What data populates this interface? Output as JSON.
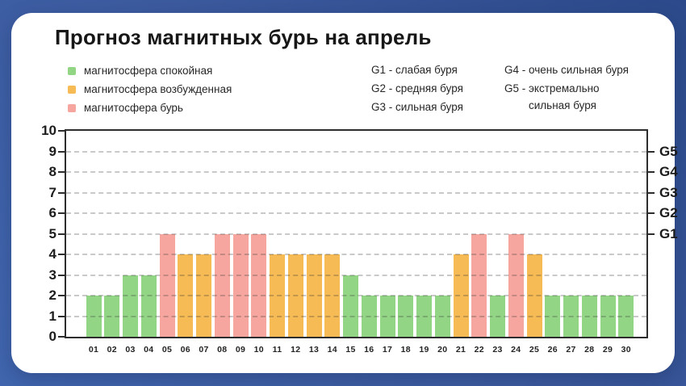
{
  "title": "Прогноз магнитных бурь на апрель",
  "legend": {
    "items": [
      {
        "key": "quiet",
        "label": "магнитосфера спокойная",
        "color": "#92D584"
      },
      {
        "key": "excited",
        "label": "магнитосфера возбужденная",
        "color": "#F6BB54"
      },
      {
        "key": "storm",
        "label": "магнитосфера бурь",
        "color": "#F6A69E"
      }
    ]
  },
  "storm_scale": {
    "col1": [
      "G1 - слабая буря",
      "G2 - средняя буря",
      "G3 - сильная буря"
    ],
    "col2": [
      "G4 - очень сильная буря",
      "G5 - экстремально\nсильная буря"
    ]
  },
  "chart_data": {
    "type": "bar",
    "title": "Прогноз магнитных бурь на апрель",
    "xlabel": "",
    "ylabel": "",
    "categories": [
      "01",
      "02",
      "03",
      "04",
      "05",
      "06",
      "07",
      "08",
      "09",
      "10",
      "11",
      "12",
      "13",
      "14",
      "15",
      "16",
      "17",
      "18",
      "19",
      "20",
      "21",
      "22",
      "23",
      "24",
      "25",
      "26",
      "27",
      "28",
      "29",
      "30"
    ],
    "values": [
      2,
      2,
      3,
      3,
      5,
      4,
      4,
      5,
      5,
      5,
      4,
      4,
      4,
      4,
      3,
      2,
      2,
      2,
      2,
      2,
      4,
      5,
      2,
      5,
      4,
      2,
      2,
      2,
      2,
      2
    ],
    "day_state": [
      "quiet",
      "quiet",
      "quiet",
      "quiet",
      "storm",
      "excited",
      "excited",
      "storm",
      "storm",
      "storm",
      "excited",
      "excited",
      "excited",
      "excited",
      "quiet",
      "quiet",
      "quiet",
      "quiet",
      "quiet",
      "quiet",
      "excited",
      "storm",
      "quiet",
      "storm",
      "excited",
      "quiet",
      "quiet",
      "quiet",
      "quiet",
      "quiet"
    ],
    "state_colors": {
      "quiet": "#92D584",
      "excited": "#F6BB54",
      "storm": "#F6A69E"
    },
    "ylim": [
      0,
      10
    ],
    "yticks": [
      0,
      1,
      2,
      3,
      4,
      5,
      6,
      7,
      8,
      9,
      10
    ],
    "right_axis": [
      {
        "label": "G5",
        "value": 9
      },
      {
        "label": "G4",
        "value": 8
      },
      {
        "label": "G3",
        "value": 7
      },
      {
        "label": "G2",
        "value": 6
      },
      {
        "label": "G1",
        "value": 5
      }
    ],
    "grid": "horizontal-dashed",
    "legend_position": "top-left"
  }
}
